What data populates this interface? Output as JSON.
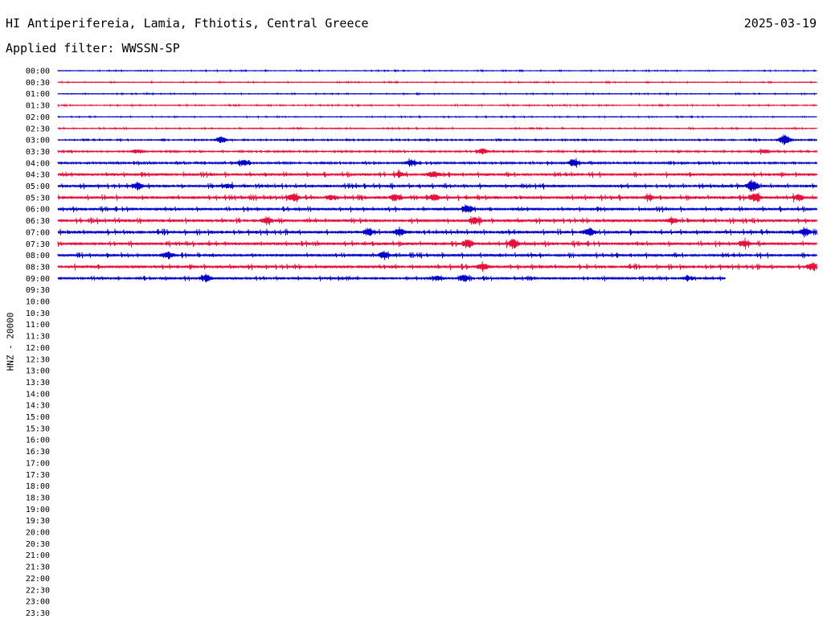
{
  "header": {
    "station_title": "HI Antiperifereia, Lamia, Fthiotis, Central Greece",
    "date": "2025-03-19",
    "filter_label": "Applied filter: WWSSN-SP"
  },
  "channel_label": "HNZ - 20000",
  "colors": {
    "even_line": "#0000cc",
    "odd_line": "#e8103a",
    "label": "#000000"
  },
  "chart_data": {
    "type": "line",
    "time_labels": [
      "00:00",
      "00:30",
      "01:00",
      "01:30",
      "02:00",
      "02:30",
      "03:00",
      "03:30",
      "04:00",
      "04:30",
      "05:00",
      "05:30",
      "06:00",
      "06:30",
      "07:00",
      "07:30",
      "08:00",
      "08:30",
      "09:00",
      "09:30",
      "10:00",
      "10:30",
      "11:00",
      "11:30",
      "12:00",
      "12:30",
      "13:00",
      "13:30",
      "14:00",
      "14:30",
      "15:00",
      "15:30",
      "16:00",
      "16:30",
      "17:00",
      "17:30",
      "18:00",
      "18:30",
      "19:00",
      "19:30",
      "20:00",
      "20:30",
      "21:00",
      "21:30",
      "22:00",
      "22:30",
      "23:00",
      "23:30"
    ],
    "rows_with_data": 19,
    "last_row_fraction": 0.88,
    "noise_level": [
      0.4,
      0.4,
      0.4,
      0.5,
      0.4,
      0.5,
      0.7,
      0.8,
      1.0,
      1.4,
      1.4,
      1.5,
      1.4,
      1.5,
      1.6,
      1.5,
      1.4,
      1.5,
      1.2
    ],
    "events": [
      [],
      [],
      [],
      [],
      [],
      [],
      [
        [
          0.215,
          5
        ],
        [
          0.958,
          8
        ]
      ],
      [
        [
          0.105,
          3
        ],
        [
          0.56,
          4
        ],
        [
          0.93,
          3
        ]
      ],
      [
        [
          0.245,
          4
        ],
        [
          0.465,
          4
        ],
        [
          0.68,
          6
        ]
      ],
      [
        [
          0.45,
          3
        ],
        [
          0.495,
          4
        ]
      ],
      [
        [
          0.105,
          5
        ],
        [
          0.225,
          3
        ],
        [
          0.915,
          8
        ]
      ],
      [
        [
          0.31,
          5
        ],
        [
          0.36,
          3
        ],
        [
          0.445,
          4
        ],
        [
          0.495,
          4
        ],
        [
          0.78,
          3
        ],
        [
          0.92,
          6
        ],
        [
          0.975,
          4
        ]
      ],
      [
        [
          0.54,
          5
        ]
      ],
      [
        [
          0.275,
          4
        ],
        [
          0.55,
          4
        ],
        [
          0.81,
          3
        ]
      ],
      [
        [
          0.41,
          5
        ],
        [
          0.45,
          6
        ],
        [
          0.7,
          5
        ],
        [
          0.985,
          5
        ]
      ],
      [
        [
          0.54,
          6
        ],
        [
          0.6,
          6
        ],
        [
          0.905,
          5
        ]
      ],
      [
        [
          0.145,
          5
        ],
        [
          0.43,
          5
        ]
      ],
      [
        [
          0.56,
          4
        ],
        [
          0.995,
          5
        ]
      ],
      [
        [
          0.195,
          5
        ],
        [
          0.5,
          3
        ],
        [
          0.535,
          5
        ],
        [
          0.83,
          3
        ]
      ]
    ]
  }
}
